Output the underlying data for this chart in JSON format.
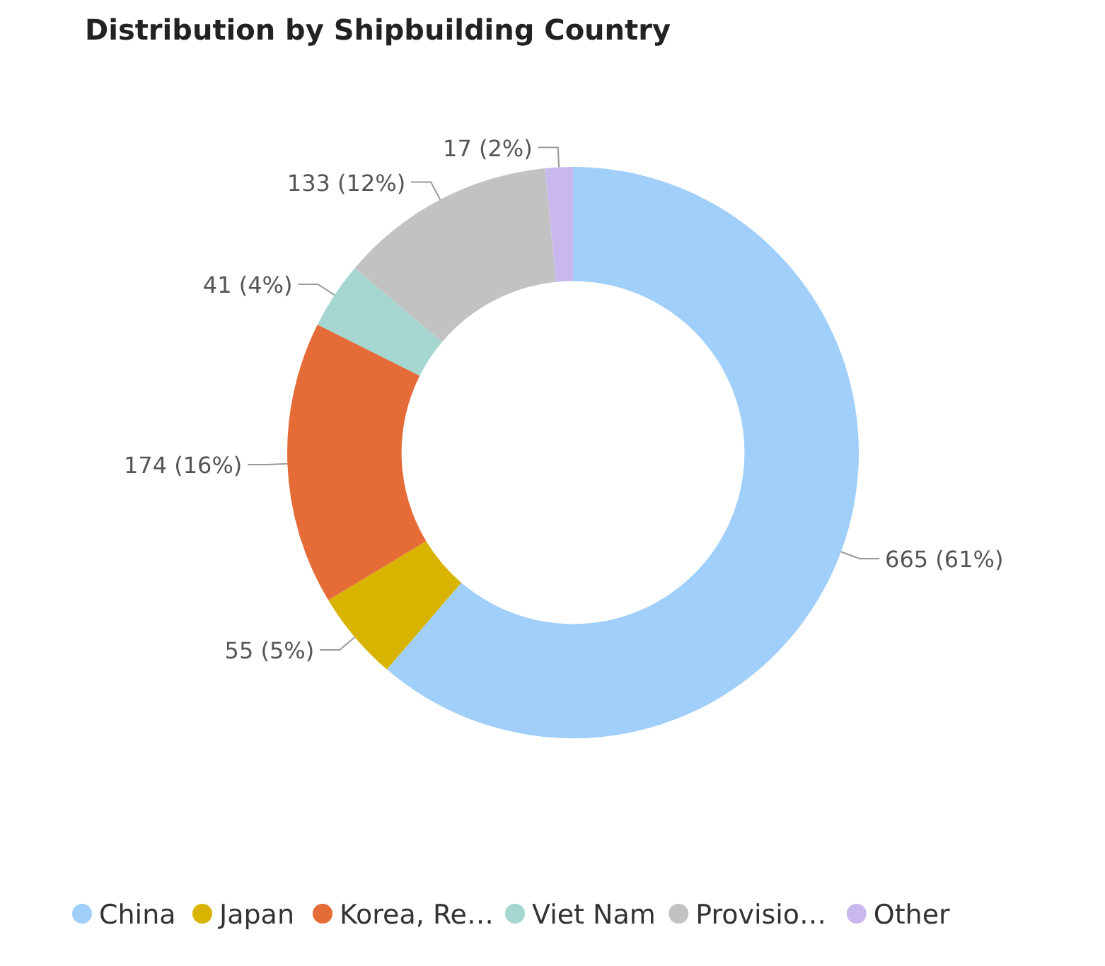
{
  "chart_data": {
    "type": "donut",
    "title": "Distribution by Shipbuilding Country",
    "categories": [
      "China",
      "Japan",
      "Korea, Re…",
      "Viet Nam",
      "Provisio…",
      "Other"
    ],
    "values": [
      665,
      55,
      174,
      41,
      133,
      17
    ],
    "colors": [
      "#a0cffa",
      "#d8b400",
      "#e56b37",
      "#a6d6d0",
      "#c2c2c2",
      "#c9b8ee"
    ],
    "value_labels": [
      "665 (61%)",
      "55 (5%)",
      "174 (16%)",
      "41 (4%)",
      "133 (12%)",
      "17 (2%)"
    ],
    "legend": "bottom"
  }
}
